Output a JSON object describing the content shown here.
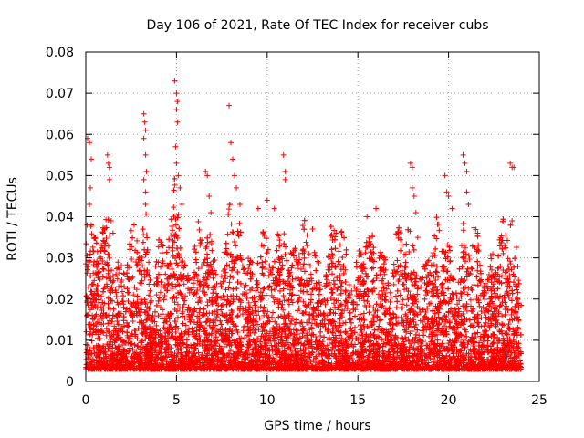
{
  "chart_data": {
    "type": "scatter",
    "title": "Day 106 of 2021, Rate Of TEC Index for receiver cubs",
    "xlabel": "GPS time / hours",
    "ylabel": "ROTI / TECUs",
    "xlim": [
      0,
      25
    ],
    "ylim": [
      0,
      0.08
    ],
    "xticks": [
      "0",
      "5",
      "10",
      "15",
      "20",
      "25"
    ],
    "yticks": [
      "0",
      "0.01",
      "0.02",
      "0.03",
      "0.04",
      "0.05",
      "0.06",
      "0.07",
      "0.08"
    ],
    "grid": true,
    "marker": "+",
    "series": [
      {
        "name": "ROTI",
        "color": "#ff0000",
        "points": [
          [
            0.1,
            0.059
          ],
          [
            0.2,
            0.058
          ],
          [
            0.3,
            0.054
          ],
          [
            0.25,
            0.047
          ],
          [
            0.2,
            0.043
          ],
          [
            0.3,
            0.038
          ],
          [
            1.2,
            0.055
          ],
          [
            1.25,
            0.053
          ],
          [
            1.3,
            0.052
          ],
          [
            1.3,
            0.049
          ],
          [
            1.4,
            0.039
          ],
          [
            1.5,
            0.036
          ],
          [
            3.2,
            0.065
          ],
          [
            3.25,
            0.063
          ],
          [
            3.3,
            0.061
          ],
          [
            3.2,
            0.059
          ],
          [
            3.3,
            0.055
          ],
          [
            3.35,
            0.051
          ],
          [
            3.2,
            0.049
          ],
          [
            3.3,
            0.046
          ],
          [
            3.3,
            0.043
          ],
          [
            4.9,
            0.073
          ],
          [
            5.0,
            0.07
          ],
          [
            5.05,
            0.068
          ],
          [
            5.0,
            0.066
          ],
          [
            5.05,
            0.063
          ],
          [
            4.95,
            0.057
          ],
          [
            5.0,
            0.053
          ],
          [
            5.1,
            0.05
          ],
          [
            5.2,
            0.047
          ],
          [
            5.3,
            0.043
          ],
          [
            6.6,
            0.051
          ],
          [
            6.7,
            0.05
          ],
          [
            6.8,
            0.045
          ],
          [
            6.9,
            0.041
          ],
          [
            7.9,
            0.067
          ],
          [
            8.0,
            0.058
          ],
          [
            8.1,
            0.054
          ],
          [
            8.2,
            0.05
          ],
          [
            8.3,
            0.047
          ],
          [
            8.5,
            0.043
          ],
          [
            9.5,
            0.042
          ],
          [
            10.0,
            0.044
          ],
          [
            10.4,
            0.042
          ],
          [
            10.9,
            0.055
          ],
          [
            11.0,
            0.051
          ],
          [
            11.0,
            0.049
          ],
          [
            12.5,
            0.037
          ],
          [
            13.8,
            0.036
          ],
          [
            15.5,
            0.04
          ],
          [
            16.0,
            0.042
          ],
          [
            17.9,
            0.053
          ],
          [
            18.0,
            0.052
          ],
          [
            18.0,
            0.047
          ],
          [
            18.1,
            0.045
          ],
          [
            18.2,
            0.041
          ],
          [
            18.3,
            0.035
          ],
          [
            19.8,
            0.05
          ],
          [
            19.9,
            0.046
          ],
          [
            20.0,
            0.045
          ],
          [
            20.2,
            0.042
          ],
          [
            20.8,
            0.055
          ],
          [
            20.9,
            0.053
          ],
          [
            21.0,
            0.051
          ],
          [
            21.0,
            0.046
          ],
          [
            21.1,
            0.043
          ],
          [
            23.4,
            0.053
          ],
          [
            23.5,
            0.052
          ],
          [
            23.6,
            0.052
          ],
          [
            23.5,
            0.039
          ]
        ]
      }
    ]
  }
}
